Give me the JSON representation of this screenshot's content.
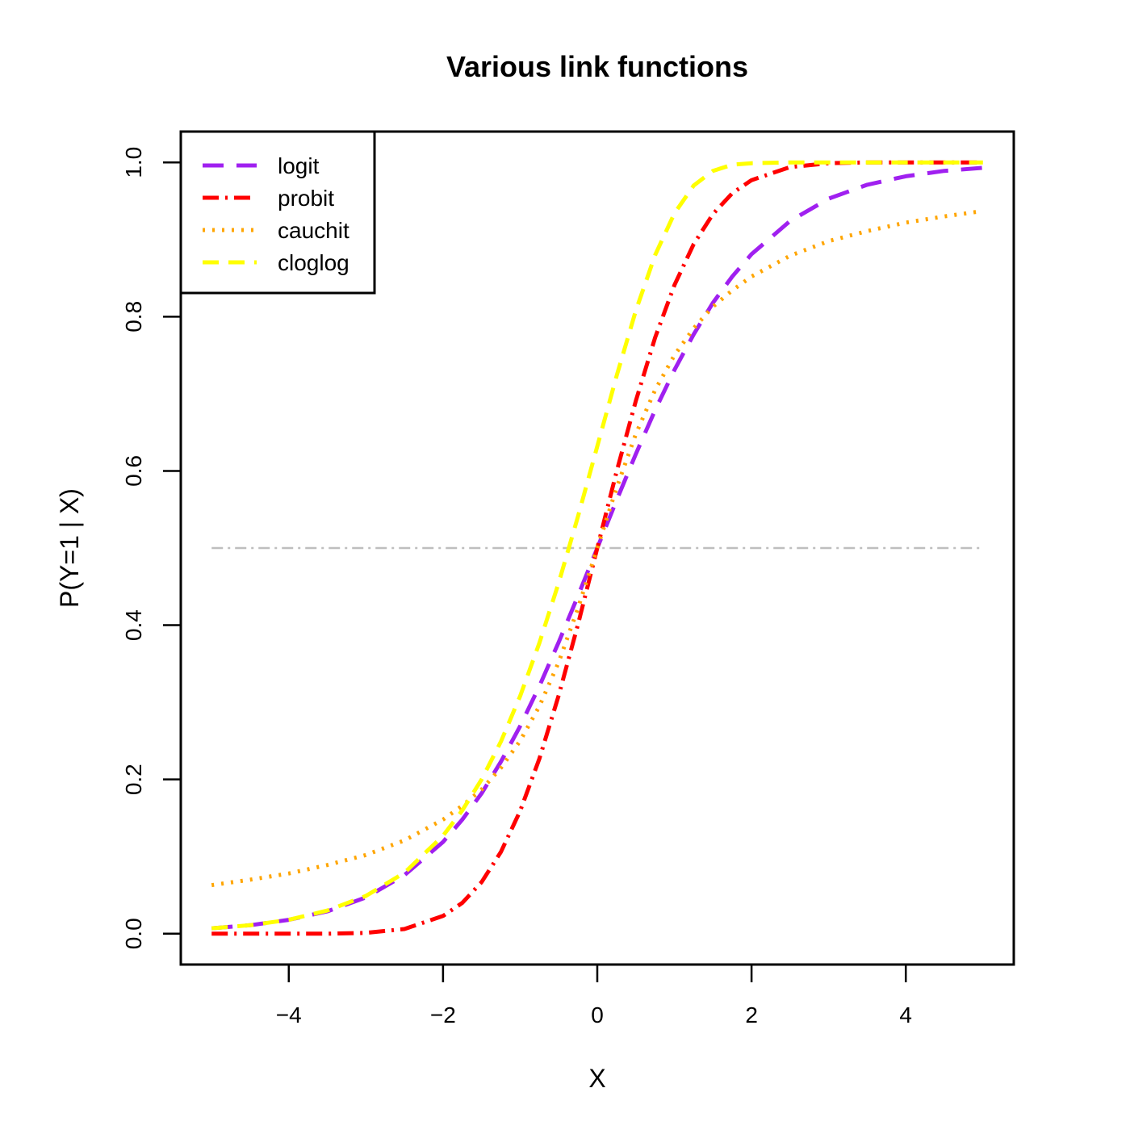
{
  "chart_data": {
    "type": "line",
    "title": "Various link functions",
    "xlabel": "X",
    "ylabel": "P(Y=1 | X)",
    "xlim": [
      -5.4,
      5.4
    ],
    "ylim": [
      -0.04,
      1.04
    ],
    "xticks": [
      -4,
      -2,
      0,
      2,
      4
    ],
    "xtick_labels": [
      "−4",
      "−2",
      "0",
      "2",
      "4"
    ],
    "yticks": [
      0.0,
      0.2,
      0.4,
      0.6,
      0.8,
      1.0
    ],
    "ytick_labels": [
      "0.0",
      "0.2",
      "0.4",
      "0.6",
      "0.8",
      "1.0"
    ],
    "grid": false,
    "legend_position": "top-left",
    "x": [
      -5,
      -4.5,
      -4,
      -3.5,
      -3,
      -2.5,
      -2,
      -1.75,
      -1.5,
      -1.25,
      -1,
      -0.75,
      -0.5,
      -0.25,
      0,
      0.25,
      0.5,
      0.75,
      1,
      1.25,
      1.5,
      1.75,
      2,
      2.5,
      3,
      3.5,
      4,
      4.5,
      5
    ],
    "series": [
      {
        "name": "logit",
        "color": "#a020f0",
        "dash": "26,16",
        "values": [
          0.007,
          0.011,
          0.018,
          0.029,
          0.047,
          0.076,
          0.119,
          0.148,
          0.182,
          0.223,
          0.269,
          0.321,
          0.378,
          0.438,
          0.5,
          0.562,
          0.622,
          0.679,
          0.731,
          0.777,
          0.818,
          0.852,
          0.881,
          0.924,
          0.953,
          0.971,
          0.982,
          0.989,
          0.993
        ]
      },
      {
        "name": "probit",
        "color": "#ff0000",
        "dash": "20,8,3,8",
        "values": [
          0.0,
          0.0,
          0.0,
          0.0,
          0.001,
          0.006,
          0.023,
          0.04,
          0.067,
          0.106,
          0.159,
          0.227,
          0.309,
          0.401,
          0.5,
          0.599,
          0.691,
          0.773,
          0.841,
          0.894,
          0.933,
          0.96,
          0.977,
          0.994,
          0.999,
          1.0,
          1.0,
          1.0,
          1.0
        ]
      },
      {
        "name": "cauchit",
        "color": "#ffa500",
        "dash": "3,9",
        "values": [
          0.063,
          0.07,
          0.078,
          0.089,
          0.102,
          0.121,
          0.148,
          0.166,
          0.187,
          0.215,
          0.25,
          0.295,
          0.352,
          0.422,
          0.5,
          0.578,
          0.648,
          0.705,
          0.75,
          0.785,
          0.813,
          0.834,
          0.852,
          0.879,
          0.898,
          0.911,
          0.922,
          0.93,
          0.937
        ]
      },
      {
        "name": "cloglog",
        "color": "#ffff00",
        "dash": "20,12",
        "values": [
          0.007,
          0.011,
          0.018,
          0.03,
          0.049,
          0.079,
          0.127,
          0.16,
          0.2,
          0.249,
          0.308,
          0.377,
          0.455,
          0.541,
          0.632,
          0.723,
          0.808,
          0.88,
          0.934,
          0.97,
          0.989,
          0.997,
          0.999,
          1.0,
          1.0,
          1.0,
          1.0,
          1.0,
          1.0
        ]
      }
    ],
    "reference_line": {
      "y": 0.5,
      "color": "#bebebe",
      "dash": "14,6,3,6"
    }
  }
}
